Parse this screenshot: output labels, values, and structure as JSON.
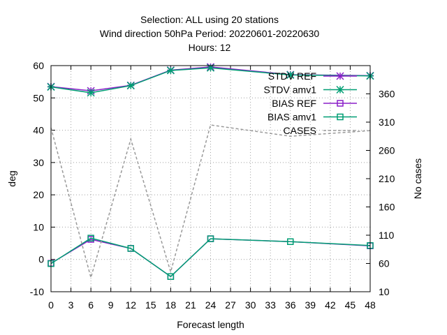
{
  "chart_data": {
    "type": "line",
    "title_lines": [
      "Selection: ALL using    20 stations",
      "Wind direction 50hPa   Period: 20220601-20220630",
      "Hours:  12"
    ],
    "xlabel": "Forecast length",
    "ylabel": "deg",
    "y2label": "No cases",
    "xlim": [
      0,
      48
    ],
    "ylim": [
      -10,
      60
    ],
    "y2lim": [
      10,
      410
    ],
    "x_ticks": [
      0,
      3,
      6,
      9,
      12,
      15,
      18,
      21,
      24,
      27,
      30,
      33,
      36,
      39,
      42,
      45,
      48
    ],
    "y_ticks": [
      -10,
      0,
      10,
      20,
      30,
      40,
      50,
      60
    ],
    "y2_ticks": [
      10,
      60,
      110,
      160,
      210,
      260,
      310,
      360
    ],
    "grid": true,
    "legend_position": "top-right",
    "series": [
      {
        "name": "STDV REF",
        "axis": "y",
        "marker": "star",
        "color": "#8a1fc8",
        "x": [
          0,
          6,
          12,
          18,
          24,
          36,
          48
        ],
        "y": [
          53.5,
          52.2,
          53.9,
          58.6,
          59.6,
          57.2,
          56.9
        ]
      },
      {
        "name": "STDV amv1",
        "axis": "y",
        "marker": "star",
        "color": "#009e73",
        "x": [
          0,
          6,
          12,
          18,
          24,
          36,
          48
        ],
        "y": [
          53.4,
          51.6,
          53.8,
          58.5,
          59.3,
          57.1,
          56.8
        ]
      },
      {
        "name": "BIAS REF",
        "axis": "y",
        "marker": "square",
        "color": "#8a1fc8",
        "x": [
          0,
          6,
          12,
          18,
          24,
          36,
          48
        ],
        "y": [
          -1.2,
          6.2,
          3.4,
          -5.3,
          6.4,
          5.5,
          4.2
        ]
      },
      {
        "name": "BIAS amv1",
        "axis": "y",
        "marker": "square",
        "color": "#009e73",
        "x": [
          0,
          6,
          12,
          18,
          24,
          36,
          48
        ],
        "y": [
          -1.3,
          6.6,
          3.4,
          -5.3,
          6.4,
          5.5,
          4.3
        ]
      },
      {
        "name": "CASES",
        "axis": "y2",
        "marker": "none",
        "color": "#999999",
        "dashed": true,
        "x": [
          0,
          6,
          12,
          18,
          24,
          36,
          48
        ],
        "y": [
          300,
          35,
          280,
          45,
          305,
          285,
          295
        ]
      }
    ]
  }
}
